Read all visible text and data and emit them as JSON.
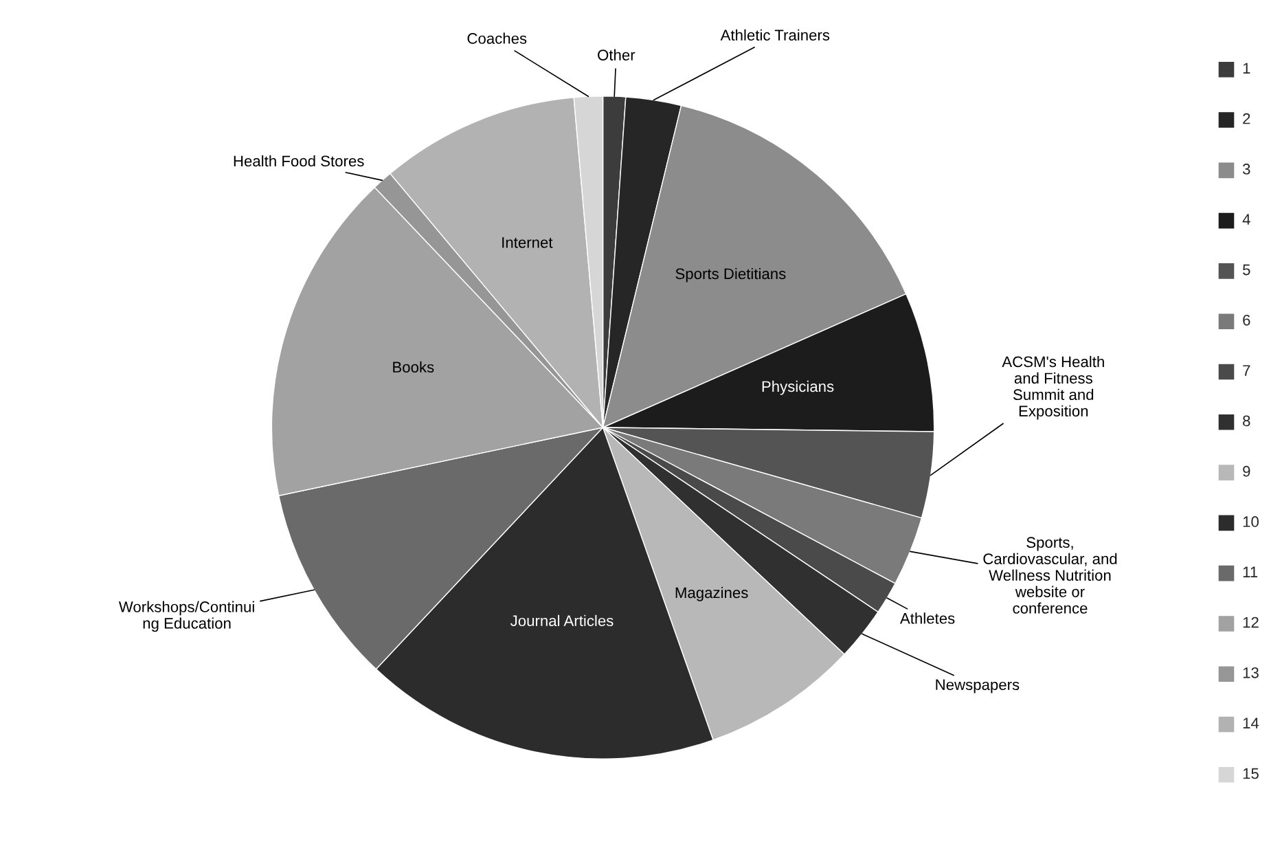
{
  "chart_data": {
    "type": "pie",
    "categories": [
      "Other",
      "Athletic Trainers",
      "Sports Dietitians",
      "Physicians",
      "ACSM's Health\nand Fitness\nSummit and\nExposition",
      "Sports,\nCardiovascular, and\nWellness Nutrition\nwebsite or\nconference",
      "Athletes",
      "Newspapers",
      "Magazines",
      "Journal Articles",
      "Workshops/Continui\nng Education",
      "Books",
      "Health Food Stores",
      "Internet",
      "Coaches"
    ],
    "values": [
      1.1,
      2.7,
      14.6,
      6.8,
      4.2,
      3.4,
      1.6,
      2.6,
      7.6,
      17.4,
      9.7,
      16.2,
      1.0,
      9.7,
      1.4
    ],
    "colors": [
      "#3c3c3c",
      "#262626",
      "#8c8c8c",
      "#1c1c1c",
      "#545454",
      "#7a7a7a",
      "#4a4a4a",
      "#303030",
      "#b8b8b8",
      "#2c2c2c",
      "#6a6a6a",
      "#a2a2a2",
      "#969696",
      "#b2b2b2",
      "#d6d6d6"
    ],
    "annotations": [
      "1",
      "2",
      "3",
      "4",
      "5",
      "6",
      "7",
      "8",
      "9",
      "10",
      "11",
      "12",
      "13",
      "14",
      "15"
    ]
  }
}
